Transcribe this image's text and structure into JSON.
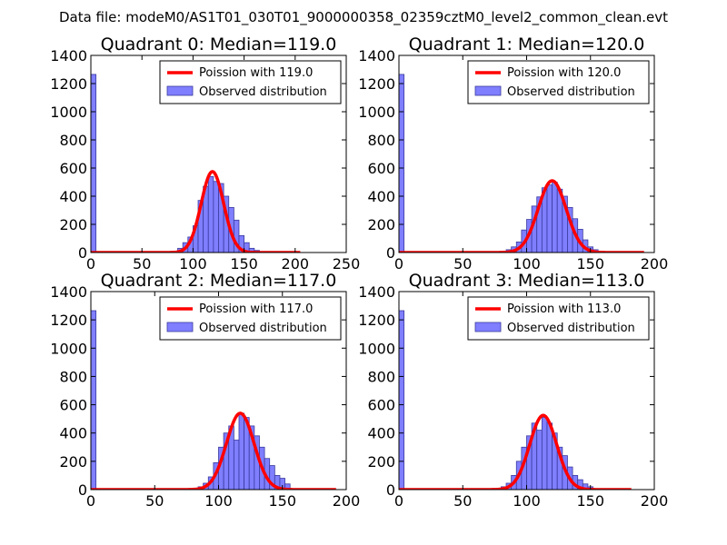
{
  "figure_title": "Data file: modeM0/AS1T01_030T01_9000000358_02359cztM0_level2_common_clean.evt",
  "colors": {
    "fit_line": "#ff0000",
    "bar_fill": "#7f7fff",
    "bar_edge": "#3a3a9e"
  },
  "chart_data": [
    {
      "type": "bar",
      "title": "Quadrant 0: Median=119.0",
      "median": 119.0,
      "xlim": [
        0,
        250
      ],
      "ylim": [
        0,
        1400
      ],
      "xticks": [
        0,
        50,
        100,
        150,
        200,
        250
      ],
      "yticks": [
        0,
        200,
        400,
        600,
        800,
        1000,
        1200,
        1400
      ],
      "bin_width": 5,
      "bins": [
        {
          "x": 0,
          "count": 1265
        },
        {
          "x": 85,
          "count": 30
        },
        {
          "x": 90,
          "count": 70
        },
        {
          "x": 95,
          "count": 110
        },
        {
          "x": 100,
          "count": 190
        },
        {
          "x": 105,
          "count": 370
        },
        {
          "x": 110,
          "count": 470
        },
        {
          "x": 115,
          "count": 540
        },
        {
          "x": 120,
          "count": 505
        },
        {
          "x": 125,
          "count": 490
        },
        {
          "x": 130,
          "count": 400
        },
        {
          "x": 135,
          "count": 320
        },
        {
          "x": 140,
          "count": 230
        },
        {
          "x": 145,
          "count": 120
        },
        {
          "x": 150,
          "count": 70
        },
        {
          "x": 155,
          "count": 30
        },
        {
          "x": 160,
          "count": 15
        },
        {
          "x": 165,
          "count": 5
        }
      ],
      "fit": {
        "mean": 119.0,
        "sigma": 11.0,
        "peak": 575,
        "x_start": 0,
        "x_end": 205
      },
      "legend": {
        "line_label": "Poission with 119.0",
        "bar_label": "Observed distribution",
        "loc": "upper right"
      }
    },
    {
      "type": "bar",
      "title": "Quadrant 1: Median=120.0",
      "median": 120.0,
      "xlim": [
        0,
        200
      ],
      "ylim": [
        0,
        1400
      ],
      "xticks": [
        0,
        50,
        100,
        150,
        200
      ],
      "yticks": [
        0,
        200,
        400,
        600,
        800,
        1000,
        1200,
        1400
      ],
      "bin_width": 4,
      "bins": [
        {
          "x": 0,
          "count": 1265
        },
        {
          "x": 84,
          "count": 20
        },
        {
          "x": 88,
          "count": 40
        },
        {
          "x": 92,
          "count": 75
        },
        {
          "x": 96,
          "count": 160
        },
        {
          "x": 100,
          "count": 235
        },
        {
          "x": 104,
          "count": 330
        },
        {
          "x": 108,
          "count": 395
        },
        {
          "x": 112,
          "count": 460
        },
        {
          "x": 116,
          "count": 480
        },
        {
          "x": 120,
          "count": 500
        },
        {
          "x": 124,
          "count": 450
        },
        {
          "x": 128,
          "count": 400
        },
        {
          "x": 132,
          "count": 320
        },
        {
          "x": 136,
          "count": 240
        },
        {
          "x": 140,
          "count": 165
        },
        {
          "x": 144,
          "count": 90
        },
        {
          "x": 148,
          "count": 40
        },
        {
          "x": 152,
          "count": 20
        }
      ],
      "fit": {
        "mean": 120.0,
        "sigma": 11.0,
        "peak": 510,
        "x_start": 0,
        "x_end": 192
      },
      "legend": {
        "line_label": "Poission with 120.0",
        "bar_label": "Observed distribution",
        "loc": "upper right"
      }
    },
    {
      "type": "bar",
      "title": "Quadrant 2: Median=117.0",
      "median": 117.0,
      "xlim": [
        0,
        200
      ],
      "ylim": [
        0,
        1400
      ],
      "xticks": [
        0,
        50,
        100,
        150,
        200
      ],
      "yticks": [
        0,
        200,
        400,
        600,
        800,
        1000,
        1200,
        1400
      ],
      "bin_width": 4,
      "bins": [
        {
          "x": 0,
          "count": 1265
        },
        {
          "x": 80,
          "count": 10
        },
        {
          "x": 84,
          "count": 20
        },
        {
          "x": 88,
          "count": 45
        },
        {
          "x": 92,
          "count": 90
        },
        {
          "x": 96,
          "count": 190
        },
        {
          "x": 100,
          "count": 300
        },
        {
          "x": 104,
          "count": 400
        },
        {
          "x": 108,
          "count": 450
        },
        {
          "x": 112,
          "count": 350
        },
        {
          "x": 116,
          "count": 540
        },
        {
          "x": 120,
          "count": 510
        },
        {
          "x": 124,
          "count": 450
        },
        {
          "x": 128,
          "count": 380
        },
        {
          "x": 132,
          "count": 300
        },
        {
          "x": 136,
          "count": 220
        },
        {
          "x": 140,
          "count": 170
        },
        {
          "x": 144,
          "count": 100
        },
        {
          "x": 148,
          "count": 80
        },
        {
          "x": 152,
          "count": 40
        }
      ],
      "fit": {
        "mean": 117.0,
        "sigma": 10.8,
        "peak": 540,
        "x_start": 0,
        "x_end": 192
      },
      "legend": {
        "line_label": "Poission with 117.0",
        "bar_label": "Observed distribution",
        "loc": "upper right"
      }
    },
    {
      "type": "bar",
      "title": "Quadrant 3: Median=113.0",
      "median": 113.0,
      "xlim": [
        0,
        200
      ],
      "ylim": [
        0,
        1400
      ],
      "xticks": [
        0,
        50,
        100,
        150,
        200
      ],
      "yticks": [
        0,
        200,
        400,
        600,
        800,
        1000,
        1200,
        1400
      ],
      "bin_width": 4,
      "bins": [
        {
          "x": 0,
          "count": 1265
        },
        {
          "x": 80,
          "count": 20
        },
        {
          "x": 84,
          "count": 45
        },
        {
          "x": 88,
          "count": 100
        },
        {
          "x": 92,
          "count": 200
        },
        {
          "x": 96,
          "count": 300
        },
        {
          "x": 100,
          "count": 380
        },
        {
          "x": 104,
          "count": 470
        },
        {
          "x": 108,
          "count": 420
        },
        {
          "x": 112,
          "count": 510
        },
        {
          "x": 116,
          "count": 470
        },
        {
          "x": 120,
          "count": 400
        },
        {
          "x": 124,
          "count": 300
        },
        {
          "x": 128,
          "count": 240
        },
        {
          "x": 132,
          "count": 160
        },
        {
          "x": 136,
          "count": 100
        },
        {
          "x": 140,
          "count": 70
        },
        {
          "x": 144,
          "count": 40
        },
        {
          "x": 148,
          "count": 20
        }
      ],
      "fit": {
        "mean": 113.0,
        "sigma": 10.6,
        "peak": 525,
        "x_start": 0,
        "x_end": 182
      },
      "legend": {
        "line_label": "Poission with 113.0",
        "bar_label": "Observed distribution",
        "loc": "upper right"
      }
    }
  ]
}
